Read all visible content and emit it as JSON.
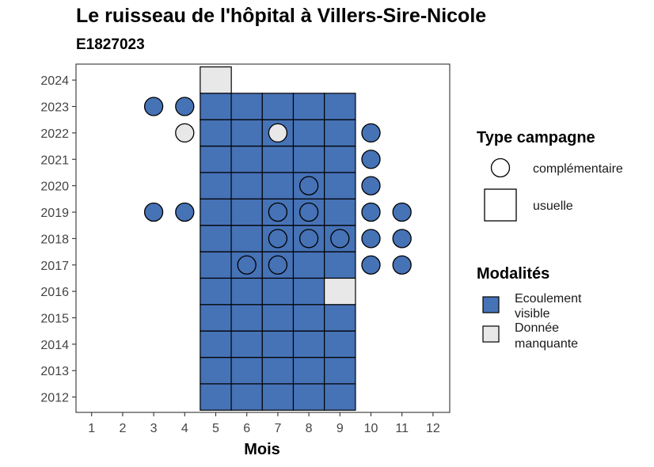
{
  "chart_data": {
    "type": "heatmap",
    "title": "Le ruisseau de l'hôpital à Villers-Sire-Nicole",
    "subtitle": "E1827023",
    "xlabel": "Mois",
    "ylabel": "",
    "x_ticks": [
      "1",
      "2",
      "3",
      "4",
      "5",
      "6",
      "7",
      "8",
      "9",
      "10",
      "11",
      "12"
    ],
    "y_ticks": [
      "2012",
      "2013",
      "2014",
      "2015",
      "2016",
      "2017",
      "2018",
      "2019",
      "2020",
      "2021",
      "2022",
      "2023",
      "2024"
    ],
    "xlim": [
      0.5,
      12.5
    ],
    "ylim": [
      2011.5,
      2024.5
    ],
    "colors": {
      "Ecoulement visible": "#4672b6",
      "Donnée manquante": "#e8e8e8"
    },
    "legend_type": {
      "title": "Type campagne",
      "items": [
        "complémentaire",
        "usuelle"
      ]
    },
    "legend_modalites": {
      "title": "Modalités",
      "items": [
        {
          "label_lines": [
            "Ecoulement",
            "visible"
          ],
          "color": "#4672b6"
        },
        {
          "label_lines": [
            "Donnée",
            "manquante"
          ],
          "color": "#e8e8e8"
        }
      ]
    },
    "squares": [
      {
        "month": 5,
        "year": 2012,
        "modalite": "Ecoulement visible"
      },
      {
        "month": 6,
        "year": 2012,
        "modalite": "Ecoulement visible"
      },
      {
        "month": 7,
        "year": 2012,
        "modalite": "Ecoulement visible"
      },
      {
        "month": 8,
        "year": 2012,
        "modalite": "Ecoulement visible"
      },
      {
        "month": 9,
        "year": 2012,
        "modalite": "Ecoulement visible"
      },
      {
        "month": 5,
        "year": 2013,
        "modalite": "Ecoulement visible"
      },
      {
        "month": 6,
        "year": 2013,
        "modalite": "Ecoulement visible"
      },
      {
        "month": 7,
        "year": 2013,
        "modalite": "Ecoulement visible"
      },
      {
        "month": 8,
        "year": 2013,
        "modalite": "Ecoulement visible"
      },
      {
        "month": 9,
        "year": 2013,
        "modalite": "Ecoulement visible"
      },
      {
        "month": 5,
        "year": 2014,
        "modalite": "Ecoulement visible"
      },
      {
        "month": 6,
        "year": 2014,
        "modalite": "Ecoulement visible"
      },
      {
        "month": 7,
        "year": 2014,
        "modalite": "Ecoulement visible"
      },
      {
        "month": 8,
        "year": 2014,
        "modalite": "Ecoulement visible"
      },
      {
        "month": 9,
        "year": 2014,
        "modalite": "Ecoulement visible"
      },
      {
        "month": 5,
        "year": 2015,
        "modalite": "Ecoulement visible"
      },
      {
        "month": 6,
        "year": 2015,
        "modalite": "Ecoulement visible"
      },
      {
        "month": 7,
        "year": 2015,
        "modalite": "Ecoulement visible"
      },
      {
        "month": 8,
        "year": 2015,
        "modalite": "Ecoulement visible"
      },
      {
        "month": 9,
        "year": 2015,
        "modalite": "Ecoulement visible"
      },
      {
        "month": 5,
        "year": 2016,
        "modalite": "Ecoulement visible"
      },
      {
        "month": 6,
        "year": 2016,
        "modalite": "Ecoulement visible"
      },
      {
        "month": 7,
        "year": 2016,
        "modalite": "Ecoulement visible"
      },
      {
        "month": 8,
        "year": 2016,
        "modalite": "Ecoulement visible"
      },
      {
        "month": 9,
        "year": 2016,
        "modalite": "Donnée manquante"
      },
      {
        "month": 5,
        "year": 2017,
        "modalite": "Ecoulement visible"
      },
      {
        "month": 6,
        "year": 2017,
        "modalite": "Ecoulement visible"
      },
      {
        "month": 7,
        "year": 2017,
        "modalite": "Ecoulement visible"
      },
      {
        "month": 8,
        "year": 2017,
        "modalite": "Ecoulement visible"
      },
      {
        "month": 9,
        "year": 2017,
        "modalite": "Ecoulement visible"
      },
      {
        "month": 5,
        "year": 2018,
        "modalite": "Ecoulement visible"
      },
      {
        "month": 6,
        "year": 2018,
        "modalite": "Ecoulement visible"
      },
      {
        "month": 7,
        "year": 2018,
        "modalite": "Ecoulement visible"
      },
      {
        "month": 8,
        "year": 2018,
        "modalite": "Ecoulement visible"
      },
      {
        "month": 9,
        "year": 2018,
        "modalite": "Ecoulement visible"
      },
      {
        "month": 5,
        "year": 2019,
        "modalite": "Ecoulement visible"
      },
      {
        "month": 6,
        "year": 2019,
        "modalite": "Ecoulement visible"
      },
      {
        "month": 7,
        "year": 2019,
        "modalite": "Ecoulement visible"
      },
      {
        "month": 8,
        "year": 2019,
        "modalite": "Ecoulement visible"
      },
      {
        "month": 9,
        "year": 2019,
        "modalite": "Ecoulement visible"
      },
      {
        "month": 5,
        "year": 2020,
        "modalite": "Ecoulement visible"
      },
      {
        "month": 6,
        "year": 2020,
        "modalite": "Ecoulement visible"
      },
      {
        "month": 7,
        "year": 2020,
        "modalite": "Ecoulement visible"
      },
      {
        "month": 8,
        "year": 2020,
        "modalite": "Ecoulement visible"
      },
      {
        "month": 9,
        "year": 2020,
        "modalite": "Ecoulement visible"
      },
      {
        "month": 5,
        "year": 2021,
        "modalite": "Ecoulement visible"
      },
      {
        "month": 6,
        "year": 2021,
        "modalite": "Ecoulement visible"
      },
      {
        "month": 7,
        "year": 2021,
        "modalite": "Ecoulement visible"
      },
      {
        "month": 8,
        "year": 2021,
        "modalite": "Ecoulement visible"
      },
      {
        "month": 9,
        "year": 2021,
        "modalite": "Ecoulement visible"
      },
      {
        "month": 5,
        "year": 2022,
        "modalite": "Ecoulement visible"
      },
      {
        "month": 6,
        "year": 2022,
        "modalite": "Ecoulement visible"
      },
      {
        "month": 7,
        "year": 2022,
        "modalite": "Ecoulement visible"
      },
      {
        "month": 8,
        "year": 2022,
        "modalite": "Ecoulement visible"
      },
      {
        "month": 9,
        "year": 2022,
        "modalite": "Ecoulement visible"
      },
      {
        "month": 5,
        "year": 2023,
        "modalite": "Ecoulement visible"
      },
      {
        "month": 6,
        "year": 2023,
        "modalite": "Ecoulement visible"
      },
      {
        "month": 7,
        "year": 2023,
        "modalite": "Ecoulement visible"
      },
      {
        "month": 8,
        "year": 2023,
        "modalite": "Ecoulement visible"
      },
      {
        "month": 9,
        "year": 2023,
        "modalite": "Ecoulement visible"
      },
      {
        "month": 5,
        "year": 2024,
        "modalite": "Donnée manquante"
      }
    ],
    "circles": [
      {
        "month": 3,
        "year": 2023,
        "modalite": "Ecoulement visible"
      },
      {
        "month": 4,
        "year": 2023,
        "modalite": "Ecoulement visible"
      },
      {
        "month": 4,
        "year": 2022,
        "modalite": "Donnée manquante"
      },
      {
        "month": 7,
        "year": 2022,
        "modalite": "Donnée manquante"
      },
      {
        "month": 10,
        "year": 2022,
        "modalite": "Ecoulement visible"
      },
      {
        "month": 10,
        "year": 2021,
        "modalite": "Ecoulement visible"
      },
      {
        "month": 8,
        "year": 2020,
        "modalite": "Ecoulement visible"
      },
      {
        "month": 10,
        "year": 2020,
        "modalite": "Ecoulement visible"
      },
      {
        "month": 3,
        "year": 2019,
        "modalite": "Ecoulement visible"
      },
      {
        "month": 4,
        "year": 2019,
        "modalite": "Ecoulement visible"
      },
      {
        "month": 7,
        "year": 2019,
        "modalite": "Ecoulement visible"
      },
      {
        "month": 8,
        "year": 2019,
        "modalite": "Ecoulement visible"
      },
      {
        "month": 10,
        "year": 2019,
        "modalite": "Ecoulement visible"
      },
      {
        "month": 11,
        "year": 2019,
        "modalite": "Ecoulement visible"
      },
      {
        "month": 7,
        "year": 2018,
        "modalite": "Ecoulement visible"
      },
      {
        "month": 8,
        "year": 2018,
        "modalite": "Ecoulement visible"
      },
      {
        "month": 9,
        "year": 2018,
        "modalite": "Ecoulement visible"
      },
      {
        "month": 10,
        "year": 2018,
        "modalite": "Ecoulement visible"
      },
      {
        "month": 11,
        "year": 2018,
        "modalite": "Ecoulement visible"
      },
      {
        "month": 6,
        "year": 2017,
        "modalite": "Ecoulement visible"
      },
      {
        "month": 7,
        "year": 2017,
        "modalite": "Ecoulement visible"
      },
      {
        "month": 10,
        "year": 2017,
        "modalite": "Ecoulement visible"
      },
      {
        "month": 11,
        "year": 2017,
        "modalite": "Ecoulement visible"
      }
    ]
  }
}
